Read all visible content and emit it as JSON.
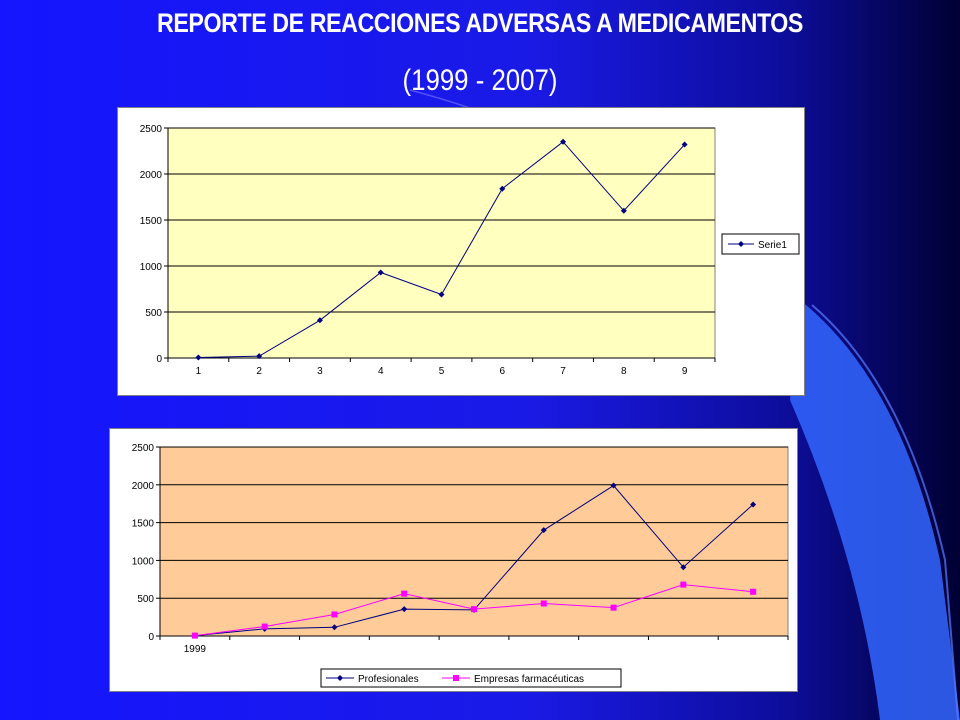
{
  "slide": {
    "title": "REPORTE DE REACCIONES ADVERSAS A MEDICAMENTOS",
    "subtitle": "(1999 - 2007)"
  },
  "colors": {
    "background": "#1515ff",
    "chart1_plot": "#ffffc0",
    "chart2_plot": "#ffcc99",
    "series_navy": "#000080",
    "series_magenta": "#ff00ff"
  },
  "chart_data": [
    {
      "type": "line",
      "title": "",
      "xlabel": "",
      "ylabel": "",
      "categories": [
        "1",
        "2",
        "3",
        "4",
        "5",
        "6",
        "7",
        "8",
        "9"
      ],
      "yticks": [
        "0",
        "500",
        "1000",
        "1500",
        "2000",
        "2500"
      ],
      "ylim": [
        0,
        2500
      ],
      "grid": true,
      "legend": "right",
      "series": [
        {
          "name": "Serie1",
          "color": "#000080",
          "marker": "diamond",
          "values": [
            5,
            20,
            410,
            930,
            690,
            1840,
            2350,
            1600,
            2320
          ]
        }
      ]
    },
    {
      "type": "line",
      "title": "",
      "xlabel": "",
      "ylabel": "",
      "categories": [
        "1999",
        "",
        "",
        "",
        "",
        "",
        "",
        "",
        ""
      ],
      "yticks": [
        "0",
        "500",
        "1000",
        "1500",
        "2000",
        "2500"
      ],
      "ylim": [
        0,
        2500
      ],
      "grid": true,
      "legend": "bottom",
      "series": [
        {
          "name": "Profesionales",
          "color": "#000080",
          "marker": "diamond",
          "values": [
            5,
            95,
            115,
            355,
            345,
            1400,
            1990,
            910,
            1740
          ]
        },
        {
          "name": "Empresas farmacéuticas",
          "color": "#ff00ff",
          "marker": "square",
          "values": [
            5,
            125,
            285,
            560,
            355,
            430,
            375,
            680,
            585
          ]
        }
      ]
    }
  ]
}
